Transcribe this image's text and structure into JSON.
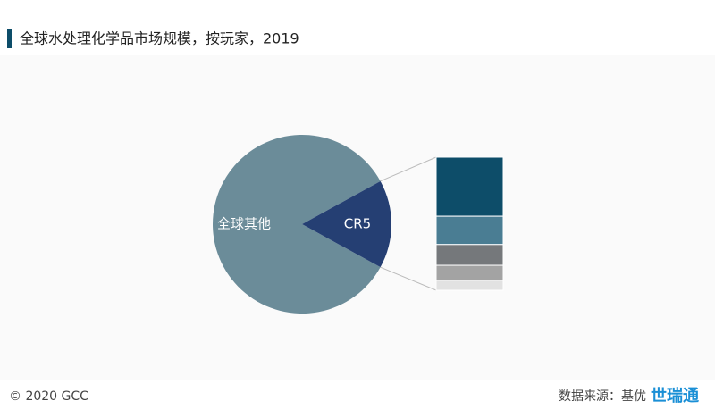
{
  "chart_data": {
    "type": "pie",
    "title": "全球水处理化学品市场规模，按玩家，2019",
    "categories": [
      "全球其他",
      "CR5"
    ],
    "values": [
      84,
      16
    ],
    "colors": [
      "#6b8c99",
      "#253f73"
    ],
    "stack": {
      "values": [
        7.1,
        3.4,
        2.5,
        1.8,
        1.2
      ],
      "colors": [
        "#0d4d69",
        "#4a7d93",
        "#75787b",
        "#a3a3a3",
        "#e2e2e2"
      ]
    },
    "copyright": "© 2020 GCC",
    "source": "数据来源：基优",
    "logo": "世瑞通"
  }
}
